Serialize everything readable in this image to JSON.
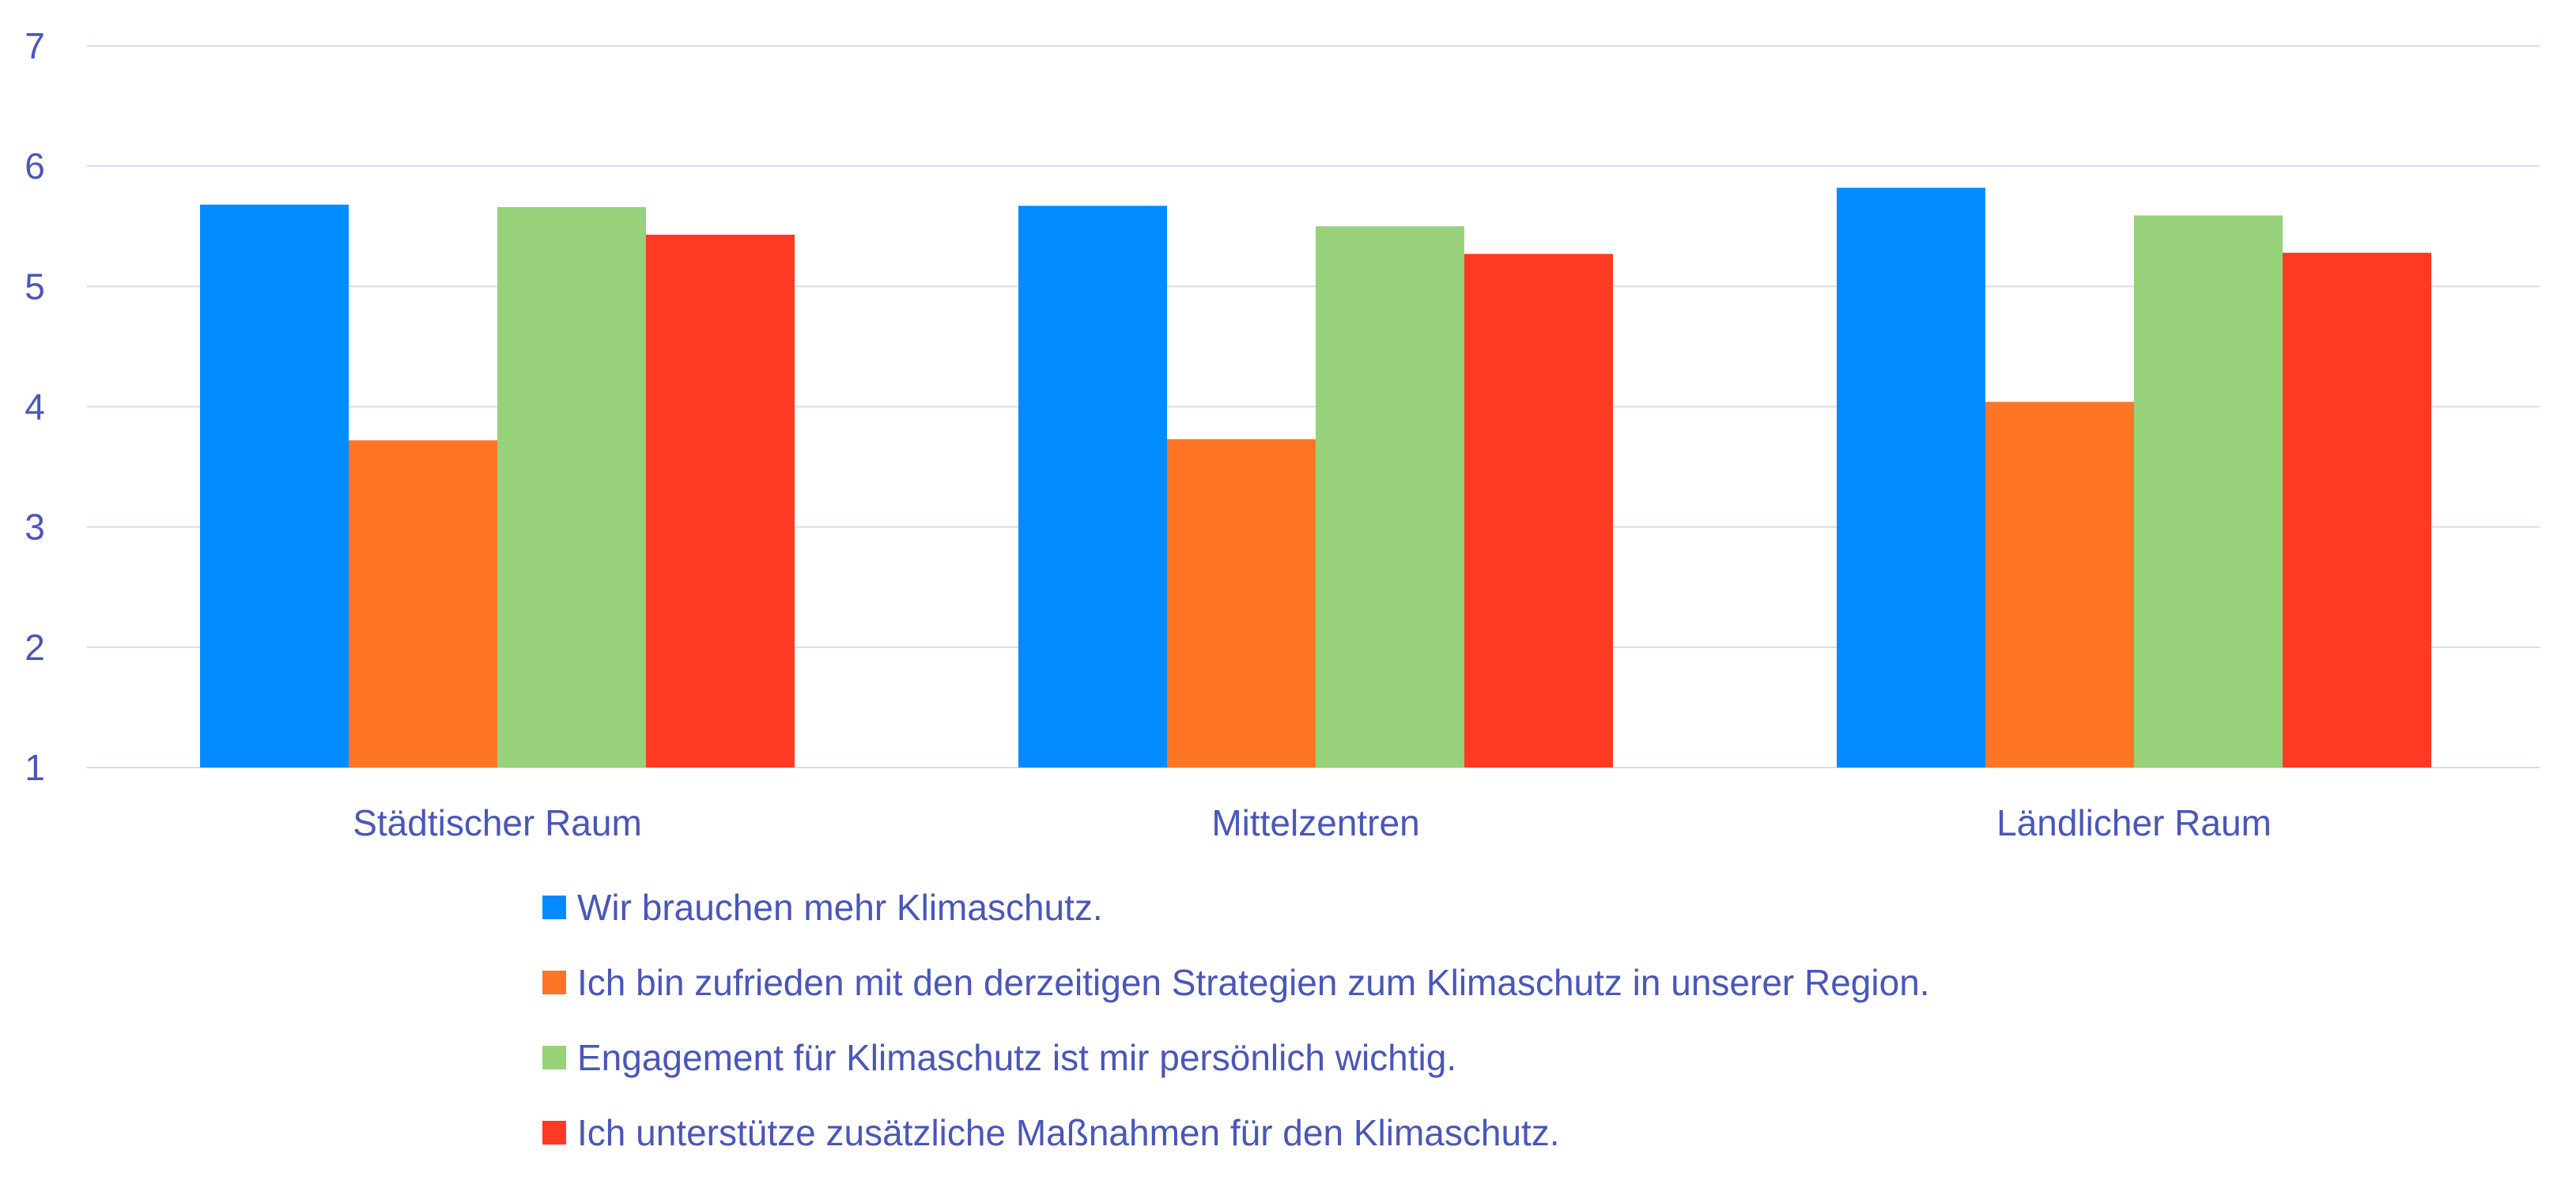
{
  "chart_data": {
    "type": "bar",
    "categories": [
      "Städtischer Raum",
      "Mittelzentren",
      "Ländlicher Raum"
    ],
    "series": [
      {
        "name": "Wir brauchen mehr Klimaschutz.",
        "color": "#028CFF",
        "values": [
          5.68,
          5.67,
          5.82
        ]
      },
      {
        "name": "Ich bin zufrieden mit den derzeitigen Strategien zum Klimaschutz in unserer Region.",
        "color": "#FF7526",
        "values": [
          3.72,
          3.73,
          4.04
        ]
      },
      {
        "name": "Engagement für Klimaschutz ist mir persönlich wichtig.",
        "color": "#97D27A",
        "values": [
          5.66,
          5.5,
          5.59
        ]
      },
      {
        "name": "Ich unterstütze zusätzliche Maßnahmen für den Klimaschutz.",
        "color": "#FF3A22",
        "values": [
          5.43,
          5.27,
          5.28
        ]
      }
    ],
    "yticks": [
      "1",
      "2",
      "3",
      "4",
      "5",
      "6",
      "7"
    ],
    "ylim": [
      1,
      7
    ],
    "title": "",
    "xlabel": "",
    "ylabel": "",
    "grid": true,
    "legend_position": "bottom"
  }
}
